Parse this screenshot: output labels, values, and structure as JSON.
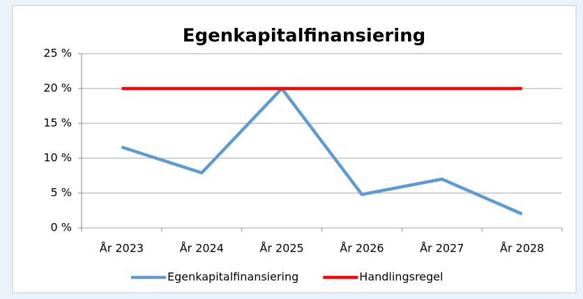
{
  "chart_data": {
    "type": "line",
    "title": "Egenkapitalfinansiering",
    "categories": [
      "År 2023",
      "År 2024",
      "År 2025",
      "År 2026",
      "År 2027",
      "År 2028"
    ],
    "series": [
      {
        "name": "Egenkapitalfinansiering",
        "color": "#5b9bd5",
        "values": [
          11.6,
          7.9,
          20,
          4.8,
          7.0,
          2.0
        ]
      },
      {
        "name": "Handlingsregel",
        "color": "#ff0000",
        "values": [
          20,
          20,
          20,
          20,
          20,
          20
        ]
      }
    ],
    "ylim": [
      0,
      25
    ],
    "yticks": [
      {
        "value": 0,
        "label": "0 %"
      },
      {
        "value": 5,
        "label": "5 %"
      },
      {
        "value": 10,
        "label": "10 %"
      },
      {
        "value": 15,
        "label": "15 %"
      },
      {
        "value": 20,
        "label": "20 %"
      },
      {
        "value": 25,
        "label": "25 %"
      }
    ],
    "grid": true,
    "legend": "bottom"
  }
}
